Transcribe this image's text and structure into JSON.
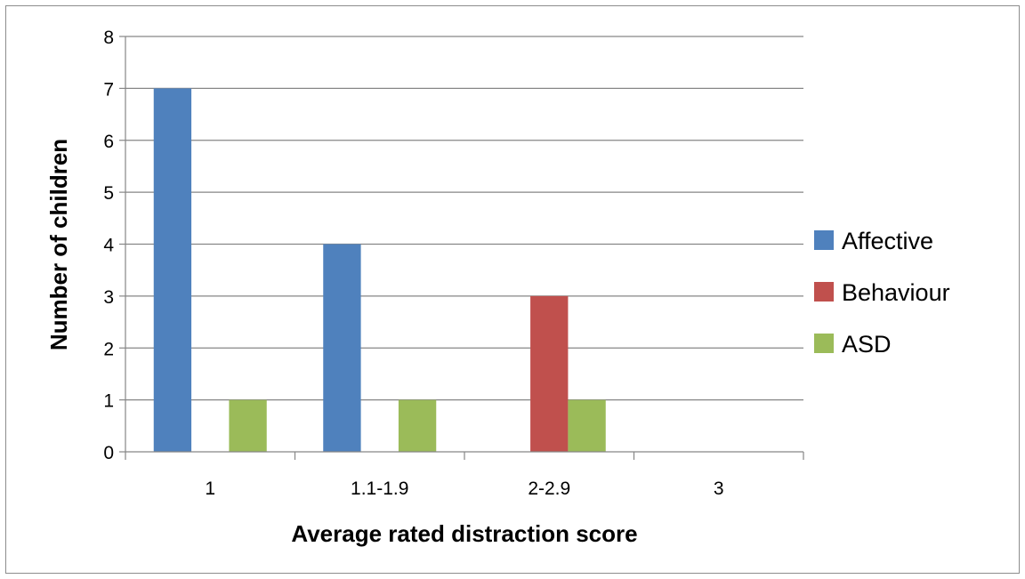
{
  "chart_data": {
    "type": "bar",
    "categories": [
      "1",
      "1.1-1.9",
      "2-2.9",
      "3"
    ],
    "series": [
      {
        "name": "Affective",
        "values": [
          7,
          4,
          0,
          0
        ],
        "color": "#4f81bd"
      },
      {
        "name": "Behaviour",
        "values": [
          0,
          0,
          3,
          0
        ],
        "color": "#c0504d"
      },
      {
        "name": "ASD",
        "values": [
          1,
          1,
          1,
          0
        ],
        "color": "#9bbb59"
      }
    ],
    "title": "",
    "xlabel": "Average rated distraction score",
    "ylabel": "Number of children",
    "ylim": [
      0,
      8
    ],
    "yticks": [
      0,
      1,
      2,
      3,
      4,
      5,
      6,
      7,
      8
    ],
    "grid": true,
    "legend_position": "right"
  }
}
